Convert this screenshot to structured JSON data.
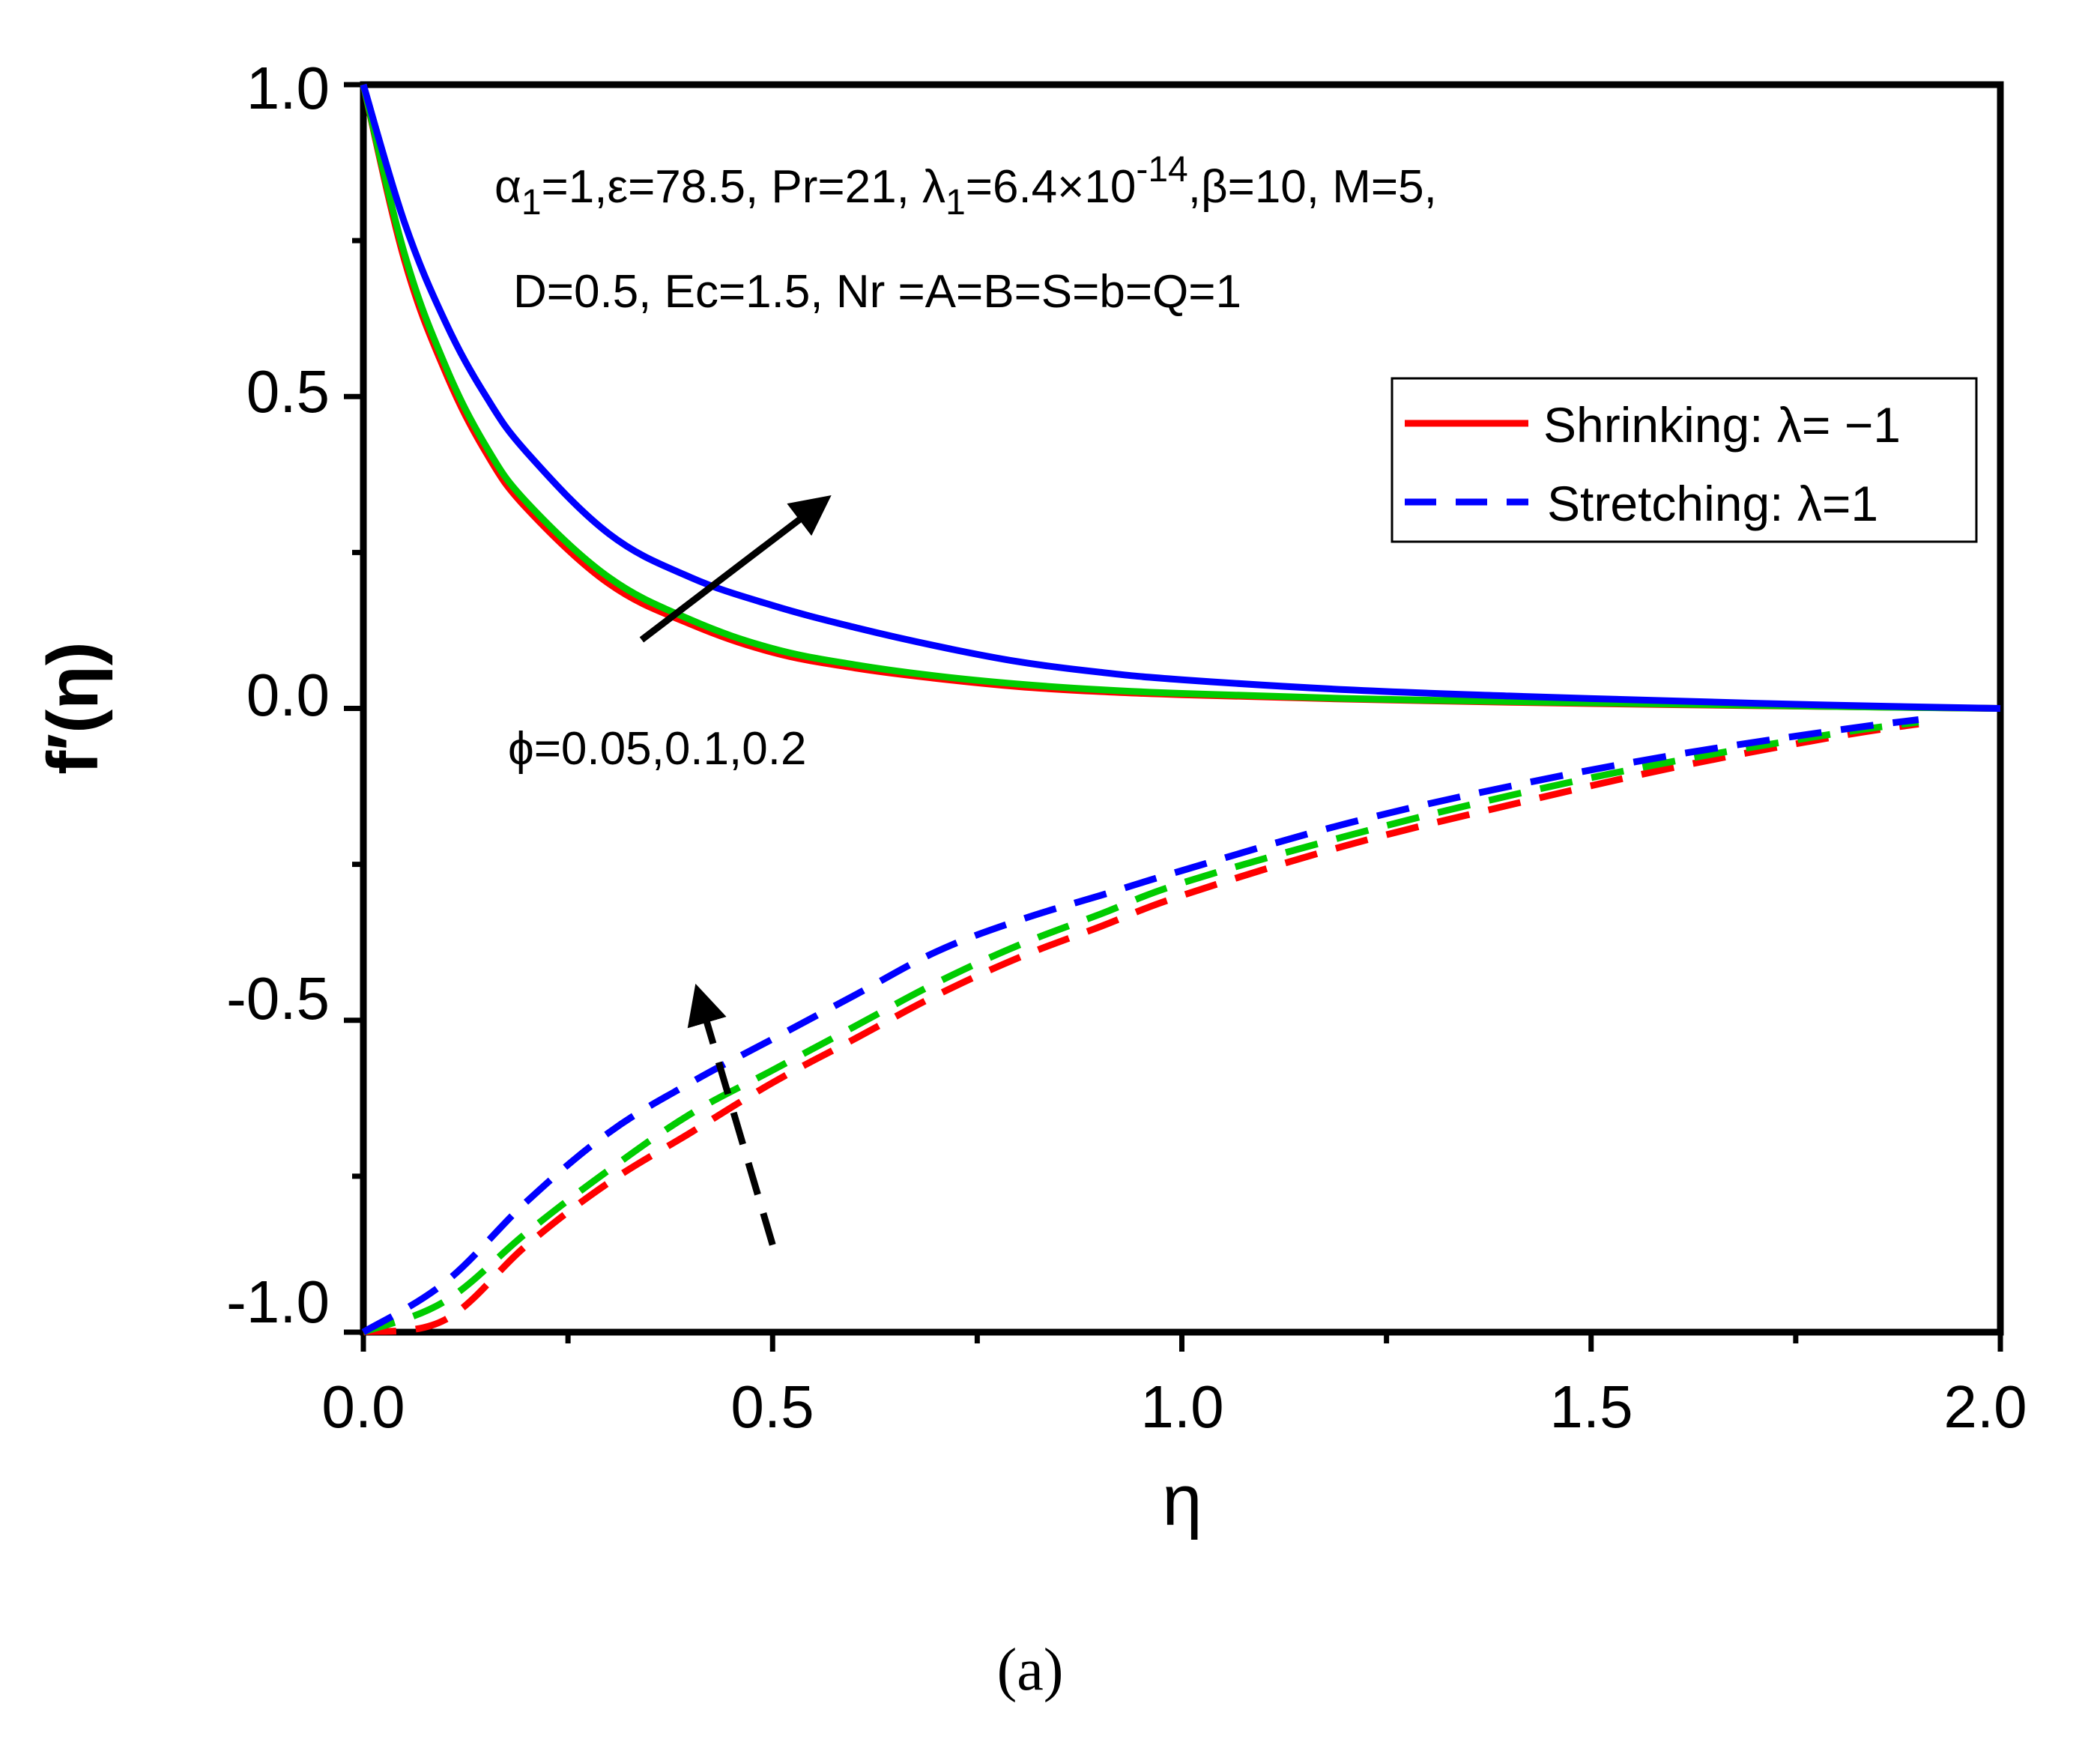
{
  "chart_data": {
    "type": "line",
    "title": "",
    "xlabel": "η",
    "ylabel": "f′(η)",
    "xlim": [
      0,
      2
    ],
    "ylim": [
      -1,
      1
    ],
    "x_ticks": [
      "0.0",
      "0.5",
      "1.0",
      "1.5",
      "2.0"
    ],
    "y_ticks": [
      "-1.0",
      "-0.5",
      "0.0",
      "0.5",
      "1.0"
    ],
    "x_tick_values": [
      0,
      0.5,
      1,
      1.5,
      2
    ],
    "y_tick_values": [
      -1,
      -0.5,
      0,
      0.5,
      1
    ],
    "grid": false,
    "legend_position": "top-right",
    "legend": [
      {
        "label": "Shrinking: λ= −1",
        "style": "solid",
        "color": "#ff0000"
      },
      {
        "label": "Stretching: λ=1",
        "style": "dashed",
        "color": "#0000ff"
      }
    ],
    "annotations": {
      "params_line1_prefix": "α",
      "params_line1_sub": "1",
      "params_line1_mid": "=1,ε=78.5, Pr=21, λ",
      "params_line1_sub2": "1",
      "params_line1_mid2": "=6.4×10",
      "params_line1_sup": "-14",
      "params_line1_suffix": ",β=10, M=5,",
      "params_line2": "D=0.5, Ec=1.5, Nr =A=B=S=b=Q=1",
      "phi_label": "ϕ=0.05,0.1,0.2"
    },
    "caption": "(a)",
    "series": [
      {
        "name": "Shrinking φ=0.05",
        "color": "#ff0000",
        "style": "solid",
        "x": [
          0,
          0.05,
          0.1,
          0.15,
          0.2,
          0.3,
          0.4,
          0.5,
          0.6,
          0.7,
          0.8,
          0.9,
          1.0,
          1.2,
          1.4,
          1.6,
          1.8,
          2.0
        ],
        "y": [
          1.0,
          0.72,
          0.54,
          0.41,
          0.32,
          0.2,
          0.135,
          0.09,
          0.065,
          0.048,
          0.035,
          0.027,
          0.022,
          0.015,
          0.01,
          0.006,
          0.003,
          0.0
        ]
      },
      {
        "name": "Shrinking φ=0.1",
        "color": "#00cc00",
        "style": "solid",
        "x": [
          0,
          0.05,
          0.1,
          0.15,
          0.2,
          0.3,
          0.4,
          0.5,
          0.6,
          0.7,
          0.8,
          0.9,
          1.0,
          1.2,
          1.4,
          1.6,
          1.8,
          2.0
        ],
        "y": [
          1.0,
          0.73,
          0.55,
          0.42,
          0.33,
          0.21,
          0.142,
          0.096,
          0.07,
          0.052,
          0.039,
          0.03,
          0.024,
          0.016,
          0.011,
          0.007,
          0.003,
          0.0
        ]
      },
      {
        "name": "Shrinking φ=0.2",
        "color": "#0000ff",
        "style": "solid",
        "x": [
          0,
          0.05,
          0.1,
          0.15,
          0.2,
          0.3,
          0.4,
          0.5,
          0.6,
          0.7,
          0.8,
          0.9,
          1.0,
          1.2,
          1.4,
          1.6,
          1.8,
          2.0
        ],
        "y": [
          1.0,
          0.78,
          0.62,
          0.5,
          0.41,
          0.28,
          0.21,
          0.165,
          0.13,
          0.1,
          0.075,
          0.058,
          0.046,
          0.03,
          0.02,
          0.012,
          0.005,
          0.0
        ]
      },
      {
        "name": "Stretching φ=0.05",
        "color": "#ff0000",
        "style": "dashed",
        "x": [
          0,
          0.1,
          0.2,
          0.3,
          0.4,
          0.5,
          0.6,
          0.7,
          0.8,
          0.9,
          1.0,
          1.2,
          1.4,
          1.6,
          1.8,
          1.9
        ],
        "y": [
          -1.0,
          -0.98,
          -0.86,
          -0.76,
          -0.68,
          -0.6,
          -0.53,
          -0.46,
          -0.4,
          -0.35,
          -0.3,
          -0.22,
          -0.155,
          -0.095,
          -0.045,
          -0.025
        ]
      },
      {
        "name": "Stretching φ=0.1",
        "color": "#00cc00",
        "style": "dashed",
        "x": [
          0,
          0.1,
          0.2,
          0.3,
          0.4,
          0.5,
          0.6,
          0.7,
          0.8,
          0.9,
          1.0,
          1.2,
          1.4,
          1.6,
          1.8,
          1.9
        ],
        "y": [
          -1.0,
          -0.95,
          -0.84,
          -0.74,
          -0.65,
          -0.58,
          -0.51,
          -0.44,
          -0.38,
          -0.33,
          -0.28,
          -0.205,
          -0.14,
          -0.085,
          -0.04,
          -0.022
        ]
      },
      {
        "name": "Stretching φ=0.2",
        "color": "#0000ff",
        "style": "dashed",
        "x": [
          0,
          0.1,
          0.2,
          0.3,
          0.4,
          0.5,
          0.6,
          0.7,
          0.8,
          0.9,
          1.0,
          1.2,
          1.4,
          1.6,
          1.8,
          1.9
        ],
        "y": [
          -1.0,
          -0.92,
          -0.79,
          -0.68,
          -0.6,
          -0.53,
          -0.46,
          -0.39,
          -0.34,
          -0.3,
          -0.26,
          -0.185,
          -0.125,
          -0.075,
          -0.035,
          -0.018
        ]
      }
    ],
    "arrows": [
      {
        "name": "solid-trend-arrow",
        "style": "solid",
        "from": [
          0.34,
          0.11
        ],
        "to": [
          0.56,
          0.33
        ]
      },
      {
        "name": "dashed-trend-arrow",
        "style": "dashed",
        "from": [
          0.5,
          -0.86
        ],
        "to": [
          0.41,
          -0.46
        ]
      }
    ]
  }
}
